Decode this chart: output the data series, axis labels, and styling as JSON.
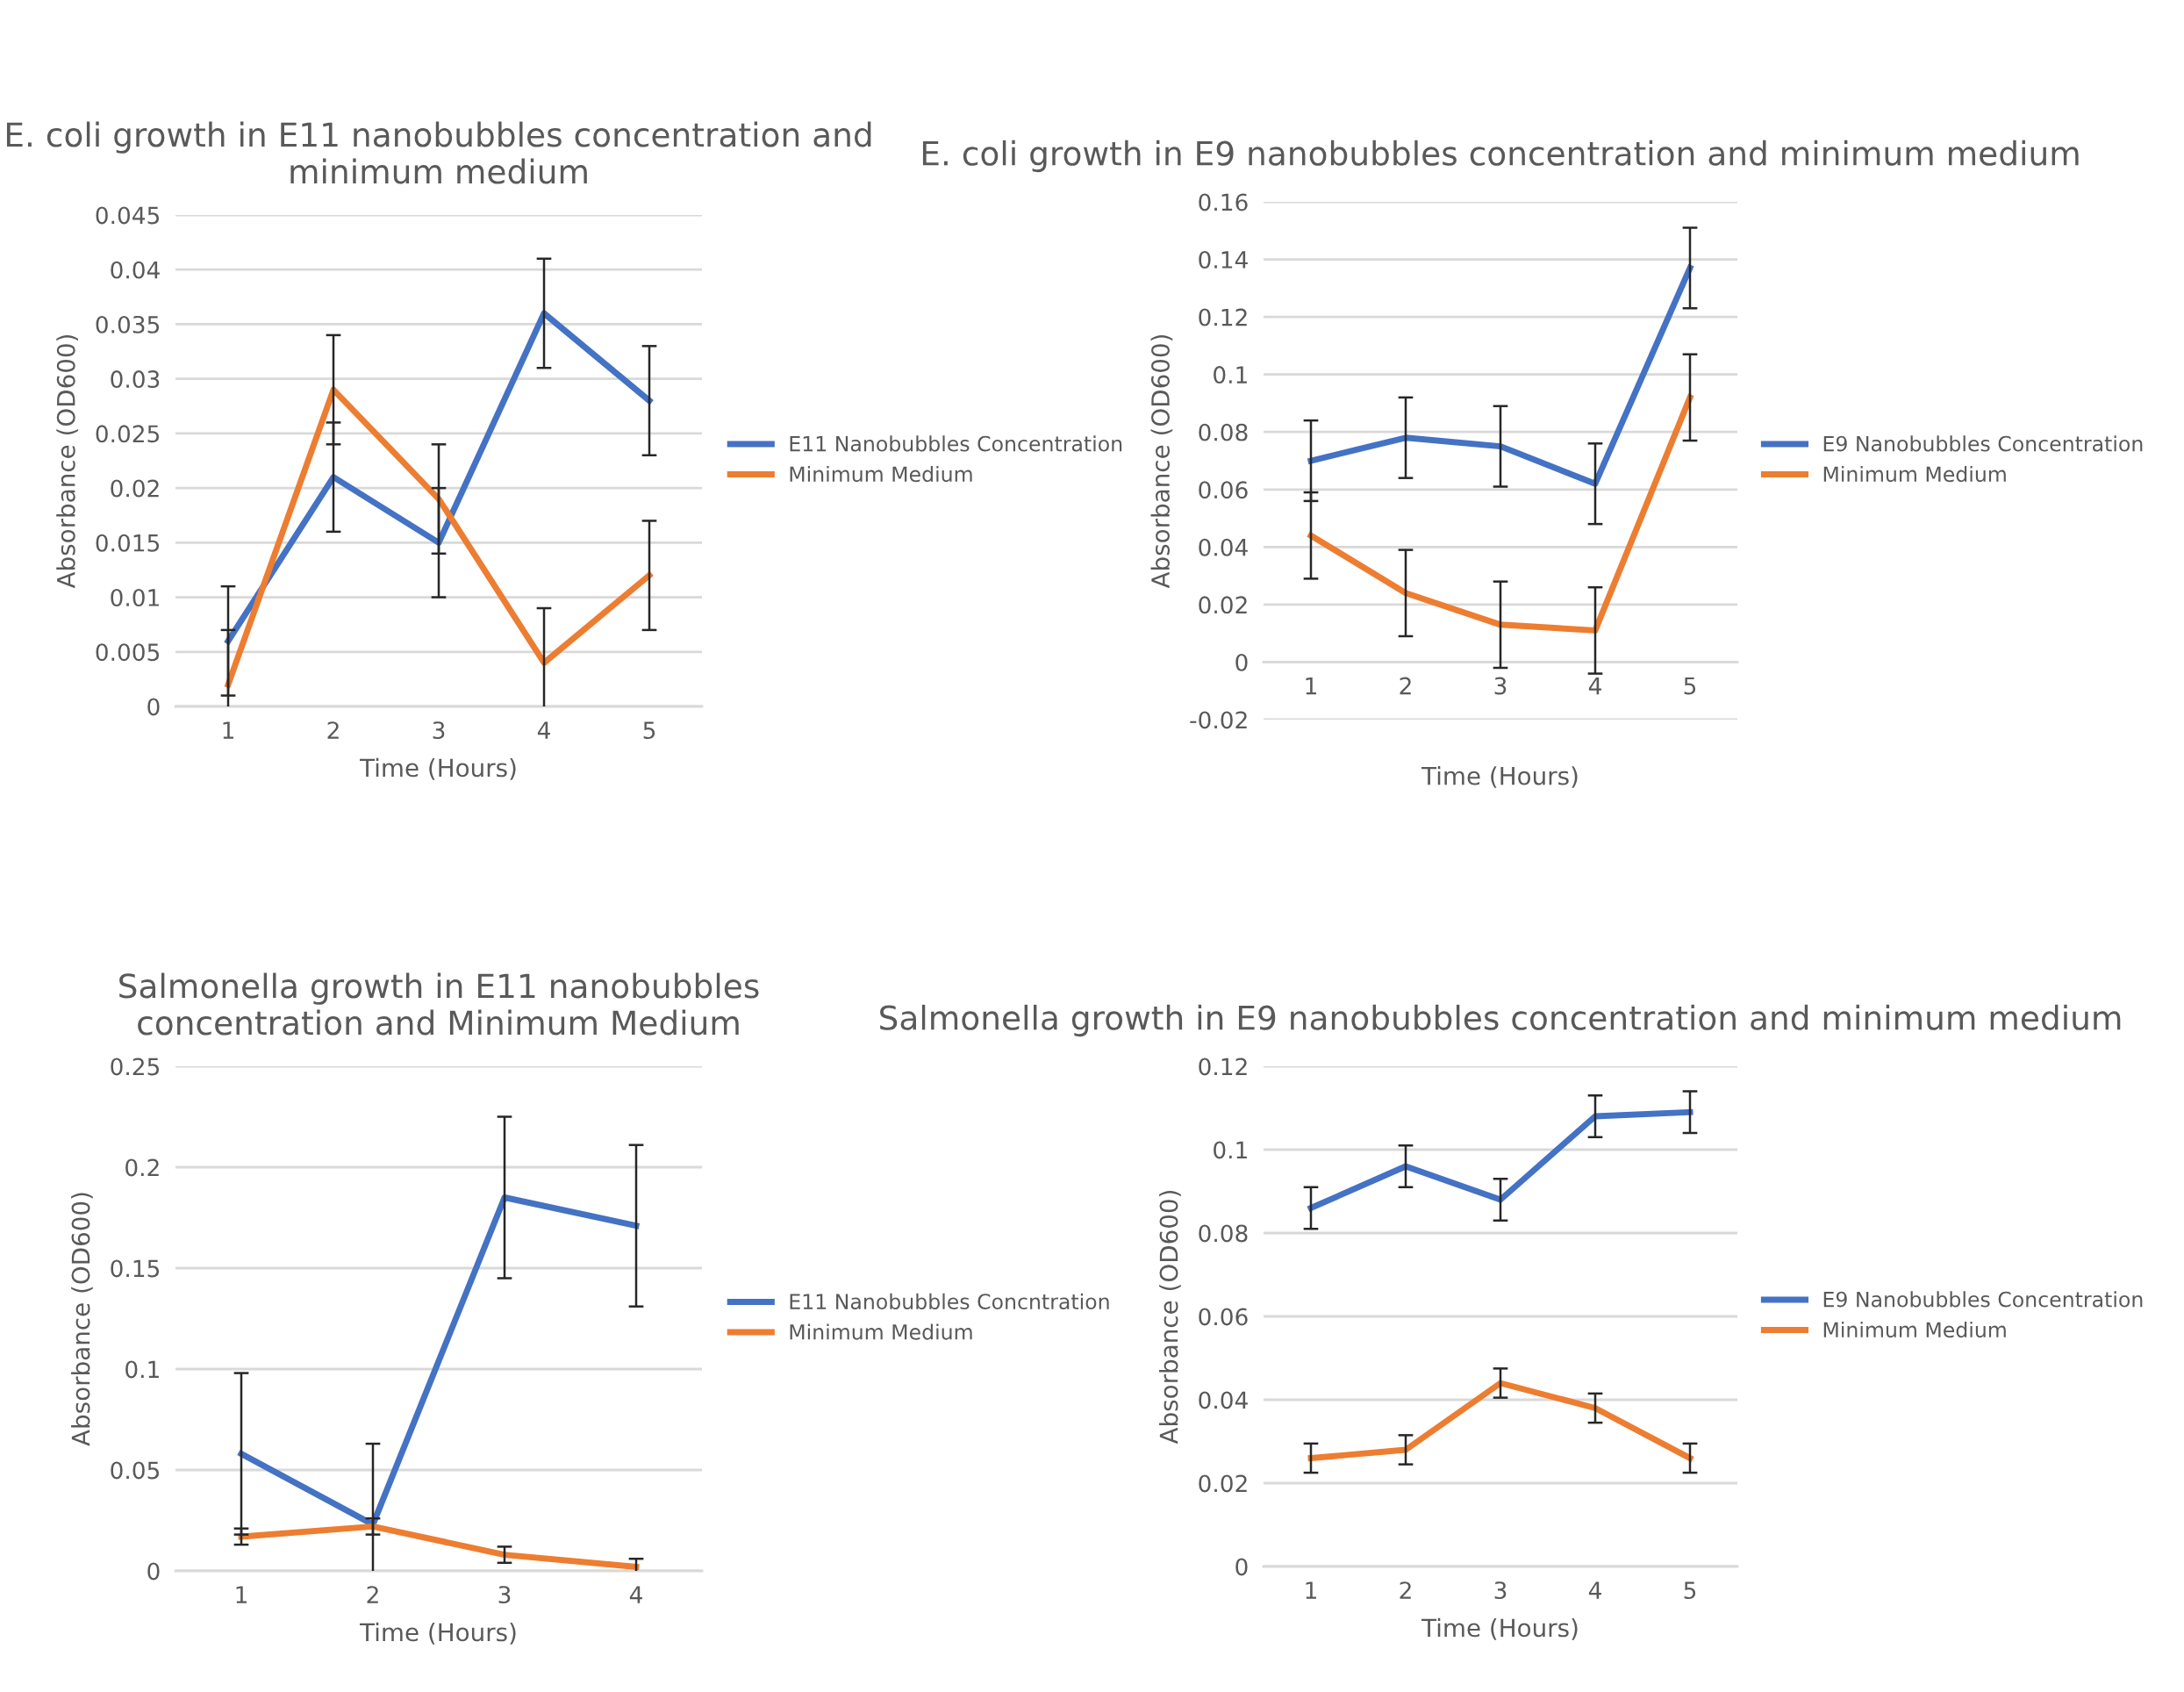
{
  "chart_data": [
    {
      "type": "line",
      "title": "E. coli growth in E11 nanobubbles concentration and minimum medium",
      "xlabel": "Time (Hours)",
      "ylabel": "Absorbance (OD600)",
      "categories": [
        "1",
        "2",
        "3",
        "4",
        "5"
      ],
      "ylim": [
        0,
        0.045
      ],
      "yticks": [
        0,
        0.005,
        0.01,
        0.015,
        0.02,
        0.025,
        0.03,
        0.035,
        0.04,
        0.045
      ],
      "grid": "y",
      "legend": "right",
      "marker": "none",
      "line_style": "solid",
      "series": [
        {
          "name": "E11 Nanobubbles Concentration",
          "color": "#4472c4",
          "values": [
            0.006,
            0.021,
            0.015,
            0.036,
            0.028
          ],
          "errors": [
            0.005,
            0.005,
            0.005,
            0.005,
            0.005
          ]
        },
        {
          "name": "Minimum Medium",
          "color": "#ed7d31",
          "values": [
            0.002,
            0.029,
            0.019,
            0.004,
            0.012
          ],
          "errors": [
            0.005,
            0.005,
            0.005,
            0.005,
            0.005
          ]
        }
      ]
    },
    {
      "type": "line",
      "title": "E. coli growth in E9 nanobubbles concentration and minimum medium",
      "xlabel": "Time (Hours)",
      "ylabel": "Absorbance (OD600)",
      "categories": [
        "1",
        "2",
        "3",
        "4",
        "5"
      ],
      "ylim": [
        -0.02,
        0.16
      ],
      "yticks": [
        -0.02,
        0,
        0.02,
        0.04,
        0.06,
        0.08,
        0.1,
        0.12,
        0.14,
        0.16
      ],
      "grid": "y",
      "legend": "right",
      "marker": "none",
      "line_style": "solid",
      "series": [
        {
          "name": "E9 Nanobubbles Concentration",
          "color": "#4472c4",
          "values": [
            0.07,
            0.078,
            0.075,
            0.062,
            0.137
          ],
          "errors": [
            0.014,
            0.014,
            0.014,
            0.014,
            0.014
          ]
        },
        {
          "name": "Minimum Medium",
          "color": "#ed7d31",
          "values": [
            0.044,
            0.024,
            0.013,
            0.011,
            0.092
          ],
          "errors": [
            0.015,
            0.015,
            0.015,
            0.015,
            0.015
          ]
        }
      ]
    },
    {
      "type": "line",
      "title": "Salmonella growth in E11 nanobubbles concentration and Minimum Medium",
      "xlabel": "Time (Hours)",
      "ylabel": "Absorbance (OD600)",
      "categories": [
        "1",
        "2",
        "3",
        "4"
      ],
      "ylim": [
        0,
        0.25
      ],
      "yticks": [
        0,
        0.05,
        0.1,
        0.15,
        0.2,
        0.25
      ],
      "grid": "y",
      "legend": "right",
      "marker": "none",
      "line_style": "solid",
      "series": [
        {
          "name": "E11 Nanobubbles Concntration",
          "color": "#4472c4",
          "values": [
            0.058,
            0.023,
            0.185,
            0.171
          ],
          "errors": [
            0.04,
            0.04,
            0.04,
            0.04
          ]
        },
        {
          "name": "Minimum Medium",
          "color": "#ed7d31",
          "values": [
            0.017,
            0.022,
            0.008,
            0.002
          ],
          "errors": [
            0.004,
            0.004,
            0.004,
            0.004
          ]
        }
      ]
    },
    {
      "type": "line",
      "title": "Salmonella growth in E9 nanobubbles concentration and minimum medium",
      "xlabel": "Time (Hours)",
      "ylabel": "Absorbance (OD600)",
      "categories": [
        "1",
        "2",
        "3",
        "4",
        "5"
      ],
      "ylim": [
        0,
        0.12
      ],
      "yticks": [
        0,
        0.02,
        0.04,
        0.06,
        0.08,
        0.1,
        0.12
      ],
      "grid": "y",
      "legend": "right",
      "marker": "none",
      "line_style": "solid",
      "series": [
        {
          "name": "E9 Nanobubbles Concentration",
          "color": "#4472c4",
          "values": [
            0.086,
            0.096,
            0.088,
            0.108,
            0.109
          ],
          "errors": [
            0.005,
            0.005,
            0.005,
            0.005,
            0.005
          ]
        },
        {
          "name": "Minimum Medium",
          "color": "#ed7d31",
          "values": [
            0.026,
            0.028,
            0.044,
            0.038,
            0.026
          ],
          "errors": [
            0.0035,
            0.0035,
            0.0035,
            0.0035,
            0.0035
          ]
        }
      ]
    }
  ]
}
